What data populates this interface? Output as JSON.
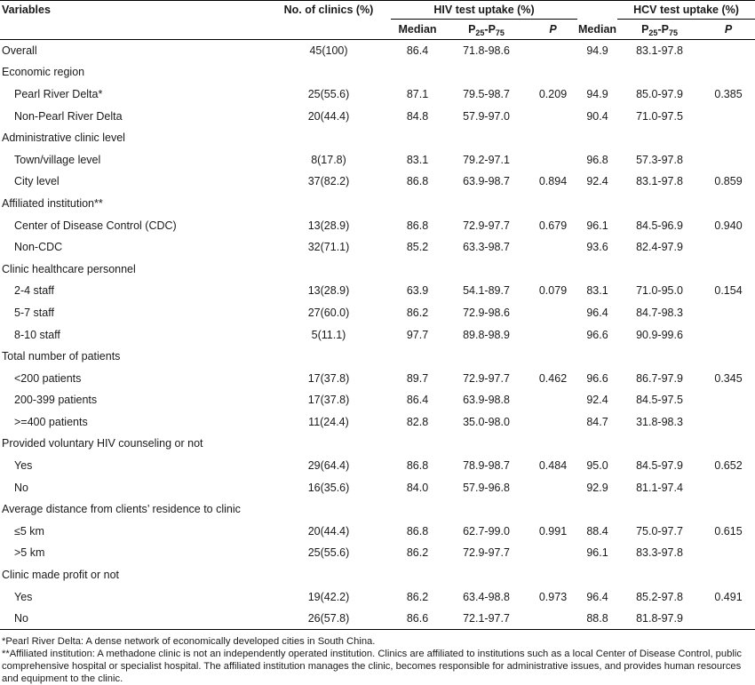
{
  "header": {
    "variables": "Variables",
    "clinics": "No. of clinics (%)",
    "hiv_group": "HIV test uptake (%)",
    "hcv_group": "HCV test uptake (%)",
    "median": "Median",
    "p25": "P",
    "p25_sub1": "25",
    "p25_dash": "-P",
    "p25_sub2": "75",
    "p": "P"
  },
  "rows": [
    {
      "label": "Overall",
      "indent": false,
      "clinics": "45(100)",
      "hiv_median": "86.4",
      "hiv_range": "71.8-98.6",
      "hiv_p": "",
      "hcv_median": "94.9",
      "hcv_range": "83.1-97.8",
      "hcv_p": ""
    },
    {
      "label": "Economic region",
      "indent": false,
      "clinics": "",
      "hiv_median": "",
      "hiv_range": "",
      "hiv_p": "",
      "hcv_median": "",
      "hcv_range": "",
      "hcv_p": ""
    },
    {
      "label": "Pearl River Delta*",
      "indent": true,
      "clinics": "25(55.6)",
      "hiv_median": "87.1",
      "hiv_range": "79.5-98.7",
      "hiv_p": "0.209",
      "hcv_median": "94.9",
      "hcv_range": "85.0-97.9",
      "hcv_p": "0.385"
    },
    {
      "label": "Non-Pearl River Delta",
      "indent": true,
      "clinics": "20(44.4)",
      "hiv_median": "84.8",
      "hiv_range": "57.9-97.0",
      "hiv_p": "",
      "hcv_median": "90.4",
      "hcv_range": "71.0-97.5",
      "hcv_p": ""
    },
    {
      "label": "Administrative clinic level",
      "indent": false,
      "clinics": "",
      "hiv_median": "",
      "hiv_range": "",
      "hiv_p": "",
      "hcv_median": "",
      "hcv_range": "",
      "hcv_p": ""
    },
    {
      "label": "Town/village level",
      "indent": true,
      "clinics": "8(17.8)",
      "hiv_median": "83.1",
      "hiv_range": "79.2-97.1",
      "hiv_p": "",
      "hcv_median": "96.8",
      "hcv_range": "57.3-97.8",
      "hcv_p": ""
    },
    {
      "label": "City level",
      "indent": true,
      "clinics": "37(82.2)",
      "hiv_median": "86.8",
      "hiv_range": "63.9-98.7",
      "hiv_p": "0.894",
      "hcv_median": "92.4",
      "hcv_range": "83.1-97.8",
      "hcv_p": "0.859"
    },
    {
      "label": "Affiliated institution**",
      "indent": false,
      "clinics": "",
      "hiv_median": "",
      "hiv_range": "",
      "hiv_p": "",
      "hcv_median": "",
      "hcv_range": "",
      "hcv_p": ""
    },
    {
      "label": "Center of Disease Control (CDC)",
      "indent": true,
      "clinics": "13(28.9)",
      "hiv_median": "86.8",
      "hiv_range": "72.9-97.7",
      "hiv_p": "0.679",
      "hcv_median": "96.1",
      "hcv_range": "84.5-96.9",
      "hcv_p": "0.940"
    },
    {
      "label": "Non-CDC",
      "indent": true,
      "clinics": "32(71.1)",
      "hiv_median": "85.2",
      "hiv_range": "63.3-98.7",
      "hiv_p": "",
      "hcv_median": "93.6",
      "hcv_range": "82.4-97.9",
      "hcv_p": ""
    },
    {
      "label": "Clinic healthcare personnel",
      "indent": false,
      "clinics": "",
      "hiv_median": "",
      "hiv_range": "",
      "hiv_p": "",
      "hcv_median": "",
      "hcv_range": "",
      "hcv_p": ""
    },
    {
      "label": "2-4 staff",
      "indent": true,
      "clinics": "13(28.9)",
      "hiv_median": "63.9",
      "hiv_range": "54.1-89.7",
      "hiv_p": "0.079",
      "hcv_median": "83.1",
      "hcv_range": "71.0-95.0",
      "hcv_p": "0.154"
    },
    {
      "label": "5-7 staff",
      "indent": true,
      "clinics": "27(60.0)",
      "hiv_median": "86.2",
      "hiv_range": "72.9-98.6",
      "hiv_p": "",
      "hcv_median": "96.4",
      "hcv_range": "84.7-98.3",
      "hcv_p": ""
    },
    {
      "label": "8-10 staff",
      "indent": true,
      "clinics": "5(11.1)",
      "hiv_median": "97.7",
      "hiv_range": "89.8-98.9",
      "hiv_p": "",
      "hcv_median": "96.6",
      "hcv_range": "90.9-99.6",
      "hcv_p": ""
    },
    {
      "label": "Total number of patients",
      "indent": false,
      "clinics": "",
      "hiv_median": "",
      "hiv_range": "",
      "hiv_p": "",
      "hcv_median": "",
      "hcv_range": "",
      "hcv_p": ""
    },
    {
      "label": "<200 patients",
      "indent": true,
      "clinics": "17(37.8)",
      "hiv_median": "89.7",
      "hiv_range": "72.9-97.7",
      "hiv_p": "0.462",
      "hcv_median": "96.6",
      "hcv_range": "86.7-97.9",
      "hcv_p": "0.345"
    },
    {
      "label": "200-399 patients",
      "indent": true,
      "clinics": "17(37.8)",
      "hiv_median": "86.4",
      "hiv_range": "63.9-98.8",
      "hiv_p": "",
      "hcv_median": "92.4",
      "hcv_range": "84.5-97.5",
      "hcv_p": ""
    },
    {
      "label": ">=400 patients",
      "indent": true,
      "clinics": "11(24.4)",
      "hiv_median": "82.8",
      "hiv_range": "35.0-98.0",
      "hiv_p": "",
      "hcv_median": "84.7",
      "hcv_range": "31.8-98.3",
      "hcv_p": ""
    },
    {
      "label": "Provided voluntary HIV counseling or not",
      "indent": false,
      "clinics": "",
      "hiv_median": "",
      "hiv_range": "",
      "hiv_p": "",
      "hcv_median": "",
      "hcv_range": "",
      "hcv_p": ""
    },
    {
      "label": "Yes",
      "indent": true,
      "clinics": "29(64.4)",
      "hiv_median": "86.8",
      "hiv_range": "78.9-98.7",
      "hiv_p": "0.484",
      "hcv_median": "95.0",
      "hcv_range": "84.5-97.9",
      "hcv_p": "0.652"
    },
    {
      "label": "No",
      "indent": true,
      "clinics": "16(35.6)",
      "hiv_median": "84.0",
      "hiv_range": "57.9-96.8",
      "hiv_p": "",
      "hcv_median": "92.9",
      "hcv_range": "81.1-97.4",
      "hcv_p": ""
    },
    {
      "label": "Average distance from clients’ residence to clinic",
      "indent": false,
      "clinics": "",
      "hiv_median": "",
      "hiv_range": "",
      "hiv_p": "",
      "hcv_median": "",
      "hcv_range": "",
      "hcv_p": ""
    },
    {
      "label": "≤5 km",
      "indent": true,
      "clinics": "20(44.4)",
      "hiv_median": "86.8",
      "hiv_range": "62.7-99.0",
      "hiv_p": "0.991",
      "hcv_median": "88.4",
      "hcv_range": "75.0-97.7",
      "hcv_p": "0.615"
    },
    {
      "label": ">5 km",
      "indent": true,
      "clinics": "25(55.6)",
      "hiv_median": "86.2",
      "hiv_range": "72.9-97.7",
      "hiv_p": "",
      "hcv_median": "96.1",
      "hcv_range": "83.3-97.8",
      "hcv_p": ""
    },
    {
      "label": "Clinic made profit or not",
      "indent": false,
      "clinics": "",
      "hiv_median": "",
      "hiv_range": "",
      "hiv_p": "",
      "hcv_median": "",
      "hcv_range": "",
      "hcv_p": ""
    },
    {
      "label": "Yes",
      "indent": true,
      "clinics": "19(42.2)",
      "hiv_median": "86.2",
      "hiv_range": "63.4-98.8",
      "hiv_p": "0.973",
      "hcv_median": "96.4",
      "hcv_range": "85.2-97.8",
      "hcv_p": "0.491"
    },
    {
      "label": "No",
      "indent": true,
      "clinics": "26(57.8)",
      "hiv_median": "86.6",
      "hiv_range": "72.1-97.7",
      "hiv_p": "",
      "hcv_median": "88.8",
      "hcv_range": "81.8-97.9",
      "hcv_p": ""
    }
  ],
  "footnotes": {
    "note1": "*Pearl River Delta: A dense network of economically developed cities in South China.",
    "note2": "**Affiliated institution: A methadone clinic is not an independently operated institution. Clinics are affiliated to institutions such as a local Center of Disease Control, public comprehensive hospital or specialist hospital. The affiliated institution manages the clinic, becomes responsible for administrative issues, and provides human resources and equipment to the clinic."
  }
}
